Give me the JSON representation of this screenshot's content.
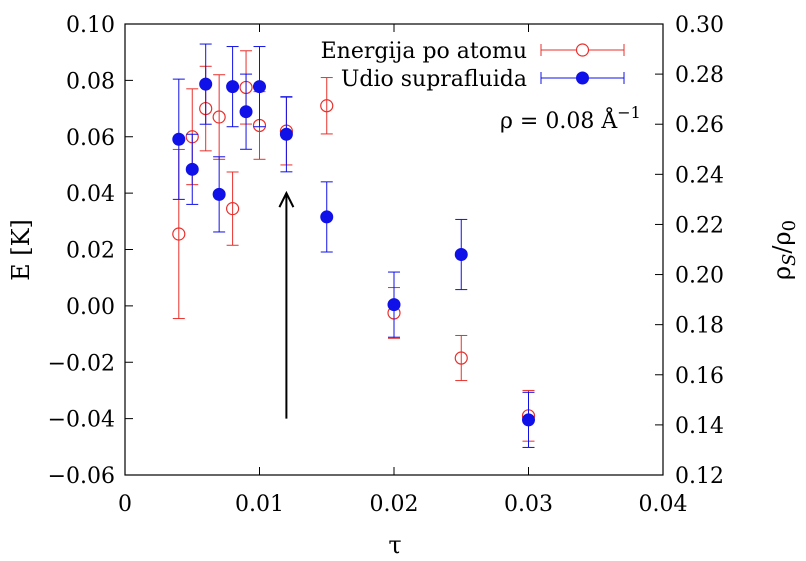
{
  "chart_data": {
    "type": "scatter",
    "xlabel": "τ",
    "ylabel": "E [K]",
    "y2label": "ρS/ρ0",
    "xlim": [
      0,
      0.04
    ],
    "ylim": [
      -0.06,
      0.1
    ],
    "y2lim": [
      0.12,
      0.3
    ],
    "xticks": [
      "0",
      "0.01",
      "0.02",
      "0.03",
      "0.04"
    ],
    "xtick_values": [
      0,
      0.01,
      0.02,
      0.03,
      0.04
    ],
    "yticks": [
      "−0.06",
      "−0.04",
      "−0.02",
      "0.00",
      "0.02",
      "0.04",
      "0.06",
      "0.08",
      "0.10"
    ],
    "ytick_values": [
      -0.06,
      -0.04,
      -0.02,
      0.0,
      0.02,
      0.04,
      0.06,
      0.08,
      0.1
    ],
    "y2ticks": [
      "0.12",
      "0.14",
      "0.16",
      "0.18",
      "0.20",
      "0.22",
      "0.24",
      "0.26",
      "0.28",
      "0.30"
    ],
    "y2tick_values": [
      0.12,
      0.14,
      0.16,
      0.18,
      0.2,
      0.22,
      0.24,
      0.26,
      0.28,
      0.3
    ],
    "grid": false,
    "legend_position": "top-right",
    "annotation": "ρ = 0.08 Å−1",
    "annotation_arrow": {
      "x": 0.012,
      "y_from": -0.04,
      "y_to": 0.04
    },
    "series": [
      {
        "name": "Energija po atomu",
        "axis": "left",
        "color": "#e8302c",
        "marker": "open-circle",
        "points": [
          {
            "x": 0.004,
            "y": 0.0255,
            "err": 0.03
          },
          {
            "x": 0.005,
            "y": 0.06,
            "err": 0.017
          },
          {
            "x": 0.006,
            "y": 0.07,
            "err": 0.015
          },
          {
            "x": 0.007,
            "y": 0.067,
            "err": 0.015
          },
          {
            "x": 0.008,
            "y": 0.0345,
            "err": 0.013
          },
          {
            "x": 0.009,
            "y": 0.0775,
            "err": 0.013
          },
          {
            "x": 0.01,
            "y": 0.064,
            "err": 0.012
          },
          {
            "x": 0.012,
            "y": 0.062,
            "err": 0.012
          },
          {
            "x": 0.015,
            "y": 0.071,
            "err": 0.01
          },
          {
            "x": 0.02,
            "y": -0.0025,
            "err": 0.009
          },
          {
            "x": 0.025,
            "y": -0.0185,
            "err": 0.008
          },
          {
            "x": 0.03,
            "y": -0.039,
            "err": 0.009
          }
        ]
      },
      {
        "name": "Udio suprafluida",
        "axis": "right",
        "color": "#1010e8",
        "marker": "filled-circle",
        "points": [
          {
            "x": 0.004,
            "y": 0.254,
            "err": 0.024
          },
          {
            "x": 0.005,
            "y": 0.242,
            "err": 0.014
          },
          {
            "x": 0.006,
            "y": 0.276,
            "err": 0.016
          },
          {
            "x": 0.007,
            "y": 0.232,
            "err": 0.015
          },
          {
            "x": 0.008,
            "y": 0.275,
            "err": 0.016
          },
          {
            "x": 0.009,
            "y": 0.265,
            "err": 0.015
          },
          {
            "x": 0.01,
            "y": 0.275,
            "err": 0.016
          },
          {
            "x": 0.012,
            "y": 0.256,
            "err": 0.015
          },
          {
            "x": 0.015,
            "y": 0.223,
            "err": 0.014
          },
          {
            "x": 0.02,
            "y": 0.188,
            "err": 0.013
          },
          {
            "x": 0.025,
            "y": 0.208,
            "err": 0.014
          },
          {
            "x": 0.03,
            "y": 0.142,
            "err": 0.011
          }
        ]
      }
    ]
  }
}
